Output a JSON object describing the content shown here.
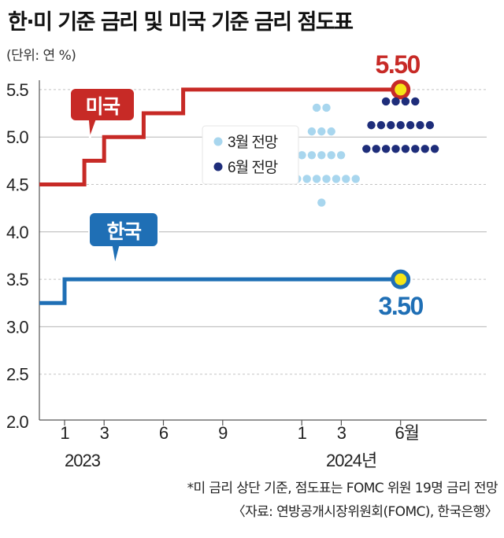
{
  "title": "한·미 기준 금리 및 미국 기준 금리 점도표",
  "unit": "(단위: 연 %)",
  "footnote": "*미 금리 상단 기준, 점도표는 FOMC 위원 19명 금리 전망",
  "source": "〈자료: 연방공개시장위원회(FOMC), 한국은행〉",
  "colors": {
    "us": "#c72a26",
    "korea": "#1f6fb5",
    "march_dots": "#a8d6ee",
    "june_dots": "#1e2d7a",
    "highlight": "#f6e516"
  },
  "chart_data": {
    "type": "line",
    "ylim": [
      2.0,
      5.5
    ],
    "y_ticks": [
      "2.0",
      "2.5",
      "3.0",
      "3.5",
      "4.0",
      "4.5",
      "5.0",
      "5.5"
    ],
    "x_ticks": [
      "1",
      "3",
      "6",
      "9",
      "1",
      "3",
      "6월"
    ],
    "x_years": [
      "2023",
      "2024년"
    ],
    "series": [
      {
        "name": "미국",
        "key": "us",
        "points": [
          {
            "x": "2022-12",
            "y": 4.5
          },
          {
            "x": "2023-02",
            "y": 4.75
          },
          {
            "x": "2023-03",
            "y": 5.0
          },
          {
            "x": "2023-05",
            "y": 5.25
          },
          {
            "x": "2023-07",
            "y": 5.5
          },
          {
            "x": "2024-06",
            "y": 5.5
          }
        ],
        "end_label": "5.50"
      },
      {
        "name": "한국",
        "key": "korea",
        "points": [
          {
            "x": "2022-12",
            "y": 3.25
          },
          {
            "x": "2023-01",
            "y": 3.5
          },
          {
            "x": "2024-06",
            "y": 3.5
          }
        ],
        "end_label": "3.50"
      }
    ],
    "dot_plots": [
      {
        "name": "3월 전망",
        "key": "march",
        "counts": [
          {
            "rate": 5.375,
            "n": 2
          },
          {
            "rate": 5.125,
            "n": 3
          },
          {
            "rate": 4.875,
            "n": 5
          },
          {
            "rate": 4.625,
            "n": 8
          },
          {
            "rate": 4.375,
            "n": 1
          }
        ]
      },
      {
        "name": "6월 전망",
        "key": "june",
        "counts": [
          {
            "rate": 5.375,
            "n": 4
          },
          {
            "rate": 5.125,
            "n": 7
          },
          {
            "rate": 4.875,
            "n": 8
          }
        ]
      }
    ]
  }
}
